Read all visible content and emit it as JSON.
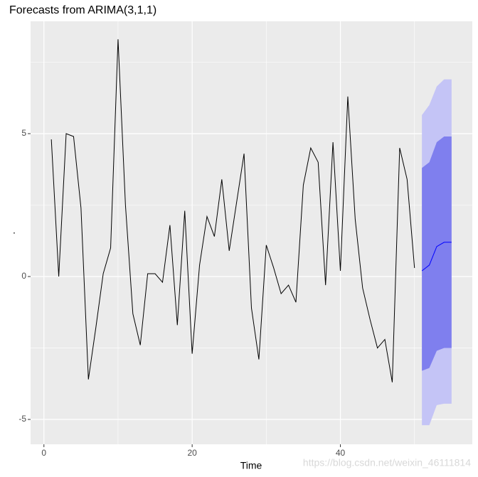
{
  "chart_data": {
    "type": "line",
    "title": "Forecasts from ARIMA(3,1,1)",
    "xlabel": "Time",
    "ylabel": ".",
    "watermark": "https://blog.csdn.net/weixin_46111814",
    "x": [
      1,
      2,
      3,
      4,
      5,
      6,
      7,
      8,
      9,
      10,
      11,
      12,
      13,
      14,
      15,
      16,
      17,
      18,
      19,
      20,
      21,
      22,
      23,
      24,
      25,
      26,
      27,
      28,
      29,
      30,
      31,
      32,
      33,
      34,
      35,
      36,
      37,
      38,
      39,
      40,
      41,
      42,
      43,
      44,
      45,
      46,
      47,
      48,
      49,
      50
    ],
    "values": [
      4.8,
      0.0,
      5.0,
      4.9,
      2.4,
      -3.6,
      -1.8,
      0.1,
      1.0,
      8.3,
      2.5,
      -1.3,
      -2.4,
      0.1,
      0.1,
      -0.2,
      1.8,
      -1.7,
      2.3,
      -2.7,
      0.4,
      2.1,
      1.4,
      3.4,
      0.9,
      2.6,
      4.3,
      -1.1,
      -2.9,
      1.1,
      0.3,
      -0.6,
      -0.3,
      -0.9,
      3.2,
      4.5,
      4.0,
      -0.3,
      4.7,
      0.2,
      6.3,
      2.0,
      -0.4,
      -1.5,
      -2.5,
      -2.2,
      -3.7,
      4.5,
      3.4,
      0.3
    ],
    "color": "#000000",
    "forecast": {
      "x": [
        51,
        52,
        53,
        54,
        55
      ],
      "mean": [
        0.2,
        0.4,
        1.05,
        1.2,
        1.2
      ],
      "lo80": [
        -3.3,
        -3.2,
        -2.6,
        -2.5,
        -2.5
      ],
      "hi80": [
        3.8,
        4.0,
        4.7,
        4.9,
        4.9
      ],
      "lo95": [
        -5.2,
        -5.2,
        -4.5,
        -4.45,
        -4.45
      ],
      "hi95": [
        5.65,
        6.0,
        6.65,
        6.9,
        6.9
      ],
      "color": "#0000ff",
      "color80": "#7f7fee",
      "color95": "#c4c4f6"
    },
    "xlim": [
      -1.8,
      57.8
    ],
    "ylim": [
      -5.87,
      8.93
    ],
    "xticks": [
      0,
      20,
      40
    ],
    "yticks": [
      -5,
      0,
      5
    ],
    "xminor": [
      10,
      30,
      50
    ],
    "yminor": [
      -2.5,
      2.5,
      7.5
    ],
    "grid": true
  }
}
